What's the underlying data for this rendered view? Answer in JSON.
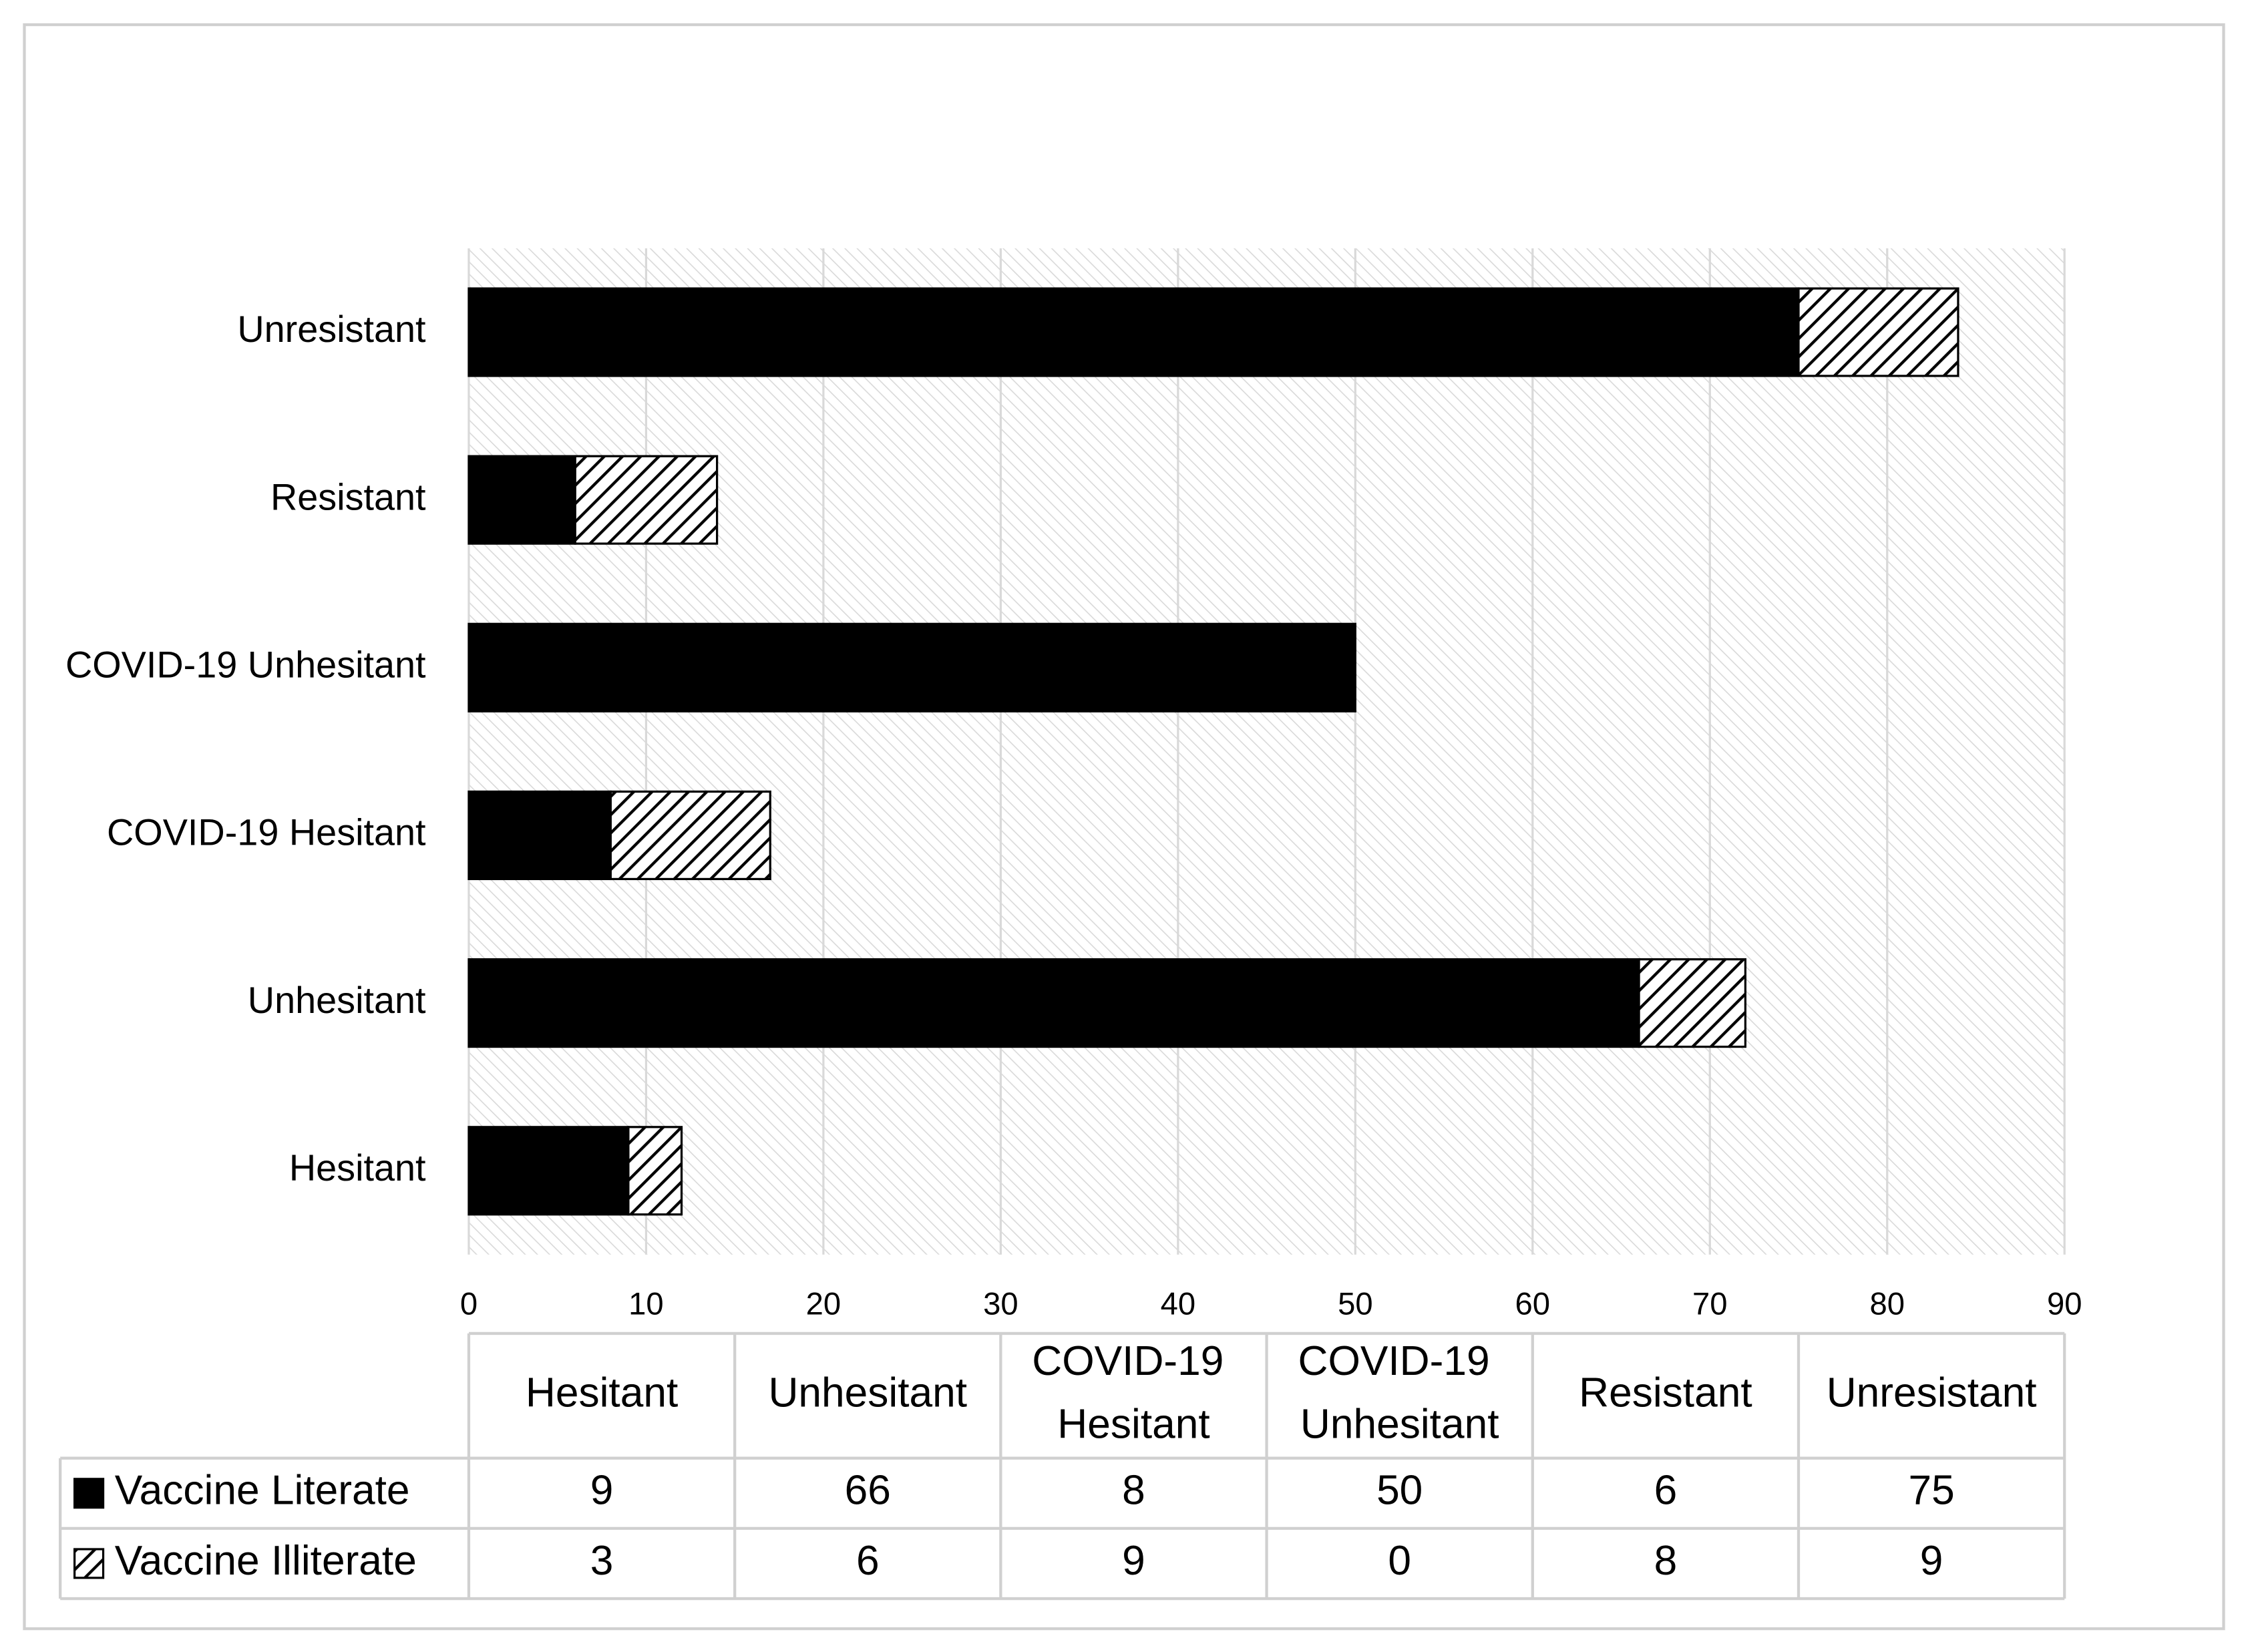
{
  "chart_data": {
    "type": "hbar_stacked",
    "categories": [
      "Hesitant",
      "Unhesitant",
      "COVID-19 Hesitant",
      "COVID-19 Unhesitant",
      "Resistant",
      "Unresistant"
    ],
    "series": [
      {
        "name": "Vaccine Literate",
        "color": "#000000",
        "pattern": "solid",
        "values": [
          9,
          66,
          8,
          50,
          6,
          75
        ]
      },
      {
        "name": "Vaccine Illiterate",
        "color": "#000000",
        "pattern": "hatch",
        "values": [
          3,
          6,
          9,
          0,
          8,
          9
        ]
      }
    ],
    "xlim": [
      0,
      90
    ],
    "xticks": [
      0,
      10,
      20,
      30,
      40,
      50,
      60,
      70,
      80,
      90
    ],
    "grid": true,
    "data_table": true
  }
}
